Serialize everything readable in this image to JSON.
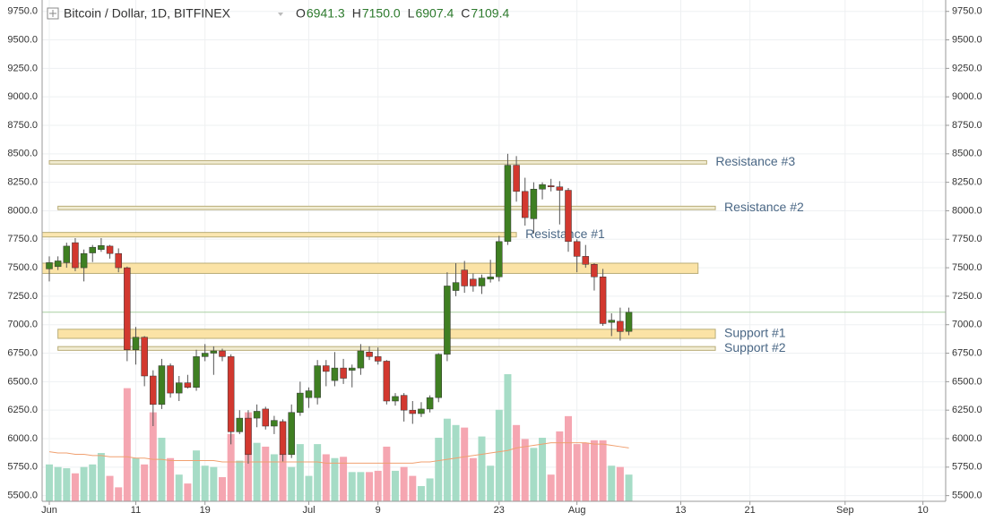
{
  "chart_data": {
    "type": "candlestick",
    "header": {
      "symbol": "Bitcoin / Dollar, 1D, BITFINEX",
      "ohlc": [
        {
          "key": "O",
          "text": "6941.3"
        },
        {
          "key": "H",
          "text": "7150.0"
        },
        {
          "key": "L",
          "text": "6907.4"
        },
        {
          "key": "C",
          "text": "7109.4"
        }
      ]
    },
    "x": [
      "Jun 1",
      "Jun 2",
      "Jun 3",
      "Jun 4",
      "Jun 5",
      "Jun 6",
      "Jun 7",
      "Jun 8",
      "Jun 9",
      "Jun 10",
      "Jun 11",
      "Jun 12",
      "Jun 13",
      "Jun 14",
      "Jun 15",
      "Jun 16",
      "Jun 17",
      "Jun 18",
      "Jun 19",
      "Jun 20",
      "Jun 21",
      "Jun 22",
      "Jun 23",
      "Jun 24",
      "Jun 25",
      "Jun 26",
      "Jun 27",
      "Jun 28",
      "Jun 29",
      "Jun 30",
      "Jul 1",
      "Jul 2",
      "Jul 3",
      "Jul 4",
      "Jul 5",
      "Jul 6",
      "Jul 7",
      "Jul 8",
      "Jul 9",
      "Jul 10",
      "Jul 11",
      "Jul 12",
      "Jul 13",
      "Jul 14",
      "Jul 15",
      "Jul 16",
      "Jul 17",
      "Jul 18",
      "Jul 19",
      "Jul 20",
      "Jul 21",
      "Jul 22",
      "Jul 23",
      "Jul 24",
      "Jul 25",
      "Jul 26",
      "Jul 27",
      "Jul 28",
      "Jul 29",
      "Jul 30",
      "Jul 31",
      "Aug 1",
      "Aug 2",
      "Aug 3",
      "Aug 4",
      "Aug 5",
      "Aug 6",
      "Aug 7"
    ],
    "open": [
      7490,
      7510,
      7545,
      7720,
      7500,
      7630,
      7660,
      7690,
      7625,
      7500,
      6780,
      6890,
      6550,
      6300,
      6640,
      6400,
      6490,
      6450,
      6720,
      6750,
      6770,
      6720,
      6060,
      6180,
      6180,
      6260,
      6110,
      6150,
      5860,
      6230,
      6360,
      6360,
      6640,
      6510,
      6620,
      6600,
      6620,
      6760,
      6720,
      6680,
      6330,
      6380,
      6250,
      6220,
      6260,
      6360,
      6740,
      7300,
      7480,
      7400,
      7340,
      7400,
      7420,
      7730,
      8400,
      8170,
      7930,
      8190,
      8220,
      8210,
      8180,
      7730,
      7600,
      7530,
      7420,
      7020,
      7030,
      6941.3
    ],
    "high": [
      7600,
      7600,
      7720,
      7760,
      7660,
      7700,
      7760,
      7700,
      7670,
      7510,
      6980,
      6900,
      6600,
      6700,
      6660,
      6550,
      6560,
      6780,
      6830,
      6810,
      6790,
      6740,
      6250,
      6250,
      6300,
      6280,
      6200,
      6170,
      6300,
      6500,
      6450,
      6690,
      6690,
      6760,
      6700,
      6650,
      6830,
      6810,
      6800,
      6690,
      6400,
      6400,
      6330,
      6320,
      6380,
      6750,
      7460,
      7540,
      7560,
      7450,
      7440,
      7570,
      7780,
      8500,
      8480,
      8290,
      8250,
      8250,
      8280,
      8260,
      8200,
      7750,
      7700,
      7540,
      7490,
      7100,
      7150,
      7150.0
    ],
    "low": [
      7380,
      7480,
      7500,
      7470,
      7380,
      7550,
      7640,
      7580,
      7460,
      6680,
      6650,
      6460,
      6110,
      6260,
      6360,
      6330,
      6440,
      6420,
      6680,
      6560,
      6680,
      5950,
      6040,
      5780,
      6100,
      6080,
      6040,
      5800,
      5830,
      6200,
      6270,
      6300,
      6460,
      6460,
      6480,
      6450,
      6560,
      6690,
      6650,
      6300,
      6290,
      6150,
      6130,
      6190,
      6230,
      6320,
      6680,
      7250,
      7280,
      7290,
      7270,
      7370,
      7380,
      7700,
      8080,
      7870,
      7800,
      8100,
      8170,
      7880,
      7640,
      7460,
      7500,
      7300,
      6990,
      6900,
      6860,
      6907.4
    ],
    "close": [
      7545,
      7560,
      7690,
      7500,
      7625,
      7680,
      7695,
      7625,
      7500,
      6780,
      6890,
      6550,
      6300,
      6640,
      6400,
      6490,
      6450,
      6720,
      6750,
      6770,
      6720,
      6060,
      6180,
      5860,
      6240,
      6110,
      6160,
      5860,
      6230,
      6400,
      6420,
      6640,
      6590,
      6620,
      6530,
      6620,
      6770,
      6720,
      6680,
      6330,
      6370,
      6250,
      6220,
      6260,
      6360,
      6740,
      7340,
      7370,
      7340,
      7340,
      7410,
      7420,
      7730,
      8400,
      8170,
      7940,
      8190,
      8230,
      8210,
      8180,
      7730,
      7600,
      7530,
      7420,
      7010,
      7040,
      6940,
      7109.4
    ],
    "volume": [
      29,
      27,
      26,
      22,
      27,
      29,
      38,
      20,
      11,
      89,
      34,
      29,
      70,
      50,
      34,
      21,
      14,
      40,
      28,
      27,
      19,
      53,
      32,
      70,
      46,
      43,
      37,
      37,
      27,
      45,
      20,
      45,
      37,
      34,
      35,
      23,
      23,
      23,
      24,
      43,
      24,
      27,
      20,
      12,
      18,
      50,
      65,
      60,
      58,
      34,
      51,
      28,
      72,
      100,
      60,
      49,
      42,
      50,
      21,
      55,
      67,
      45,
      46,
      48,
      48,
      28,
      27,
      21
    ],
    "volume_ma": [
      39,
      38,
      38,
      37,
      37,
      36,
      36,
      35,
      35,
      35,
      34,
      34,
      33,
      33,
      32,
      32,
      32,
      32,
      32,
      32,
      31,
      31,
      31,
      31,
      31,
      31,
      31,
      31,
      31,
      31,
      31,
      31,
      30,
      30,
      30,
      30,
      30,
      30,
      30,
      30,
      30,
      30,
      30,
      31,
      31,
      32,
      33,
      34,
      35,
      36,
      37,
      38,
      39,
      40,
      42,
      43,
      44,
      45,
      46,
      46,
      46,
      46,
      46,
      45,
      45,
      44,
      43,
      42
    ],
    "volume_lim": [
      0,
      100
    ],
    "up_color": "#3f7f22",
    "down_color": "#d2382f",
    "volume_up_color": "#a6dcc6",
    "volume_down_color": "#f5a6b1",
    "ma_color": "#f0a070",
    "price_line_color": "#a8cfa0",
    "ylim": [
      5450,
      9850
    ],
    "yticks": [
      {
        "value": 5500,
        "label": "5500.0"
      },
      {
        "value": 5750,
        "label": "5750.0"
      },
      {
        "value": 6000,
        "label": "6000.0"
      },
      {
        "value": 6250,
        "label": "6250.0"
      },
      {
        "value": 6500,
        "label": "6500.0"
      },
      {
        "value": 6750,
        "label": "6750.0"
      },
      {
        "value": 7000,
        "label": "7000.0"
      },
      {
        "value": 7250,
        "label": "7250.0"
      },
      {
        "value": 7500,
        "label": "7500.0"
      },
      {
        "value": 7750,
        "label": "7750.0"
      },
      {
        "value": 8000,
        "label": "8000.0"
      },
      {
        "value": 8250,
        "label": "8250.0"
      },
      {
        "value": 8500,
        "label": "8500.0"
      },
      {
        "value": 8750,
        "label": "8750.0"
      },
      {
        "value": 9000,
        "label": "9000.0"
      },
      {
        "value": 9250,
        "label": "9250.0"
      },
      {
        "value": 9500,
        "label": "9500.0"
      },
      {
        "value": 9750,
        "label": "9750.0"
      }
    ],
    "xticks": [
      {
        "value": "Jun 1",
        "label": "Jun"
      },
      {
        "value": "Jun 11",
        "label": "11"
      },
      {
        "value": "Jun 19",
        "label": "19"
      },
      {
        "value": "Jul 1",
        "label": "Jul"
      },
      {
        "value": "Jul 9",
        "label": "9"
      },
      {
        "value": "Jul 23",
        "label": "23"
      },
      {
        "value": "Aug 1",
        "label": "Aug"
      },
      {
        "value": "Aug 13",
        "label": "13"
      },
      {
        "value": "Aug 21",
        "label": "21"
      },
      {
        "value": "Sep 1",
        "label": "Sep"
      },
      {
        "value": "Sep 10",
        "label": "10"
      }
    ],
    "grid": true,
    "zones": [
      {
        "name": "Resistance #3",
        "low": 8410,
        "high": 8440,
        "from": "Jun 1",
        "to": "Aug 16",
        "color": "#f1ecd2"
      },
      {
        "name": "Resistance #2",
        "low": 8010,
        "high": 8040,
        "from": "Jun 2",
        "to": "Aug 17",
        "color": "#f1ecd2"
      },
      {
        "name": "Resistance #1",
        "low": 7770,
        "high": 7810,
        "from": "May 31",
        "to": "Jul 25",
        "color": "#fbe6b0"
      },
      {
        "low": 7450,
        "high": 7540,
        "from": "May 31",
        "to": "Aug 15",
        "color": "#fbe3a6"
      },
      {
        "name": "Support #1",
        "low": 6880,
        "high": 6960,
        "from": "Jun 2",
        "to": "Aug 17",
        "color": "#fbe3a6"
      },
      {
        "name": "Support #2",
        "low": 6775,
        "high": 6808,
        "from": "Jun 2",
        "to": "Aug 17",
        "color": "#f1ecd2"
      }
    ]
  }
}
